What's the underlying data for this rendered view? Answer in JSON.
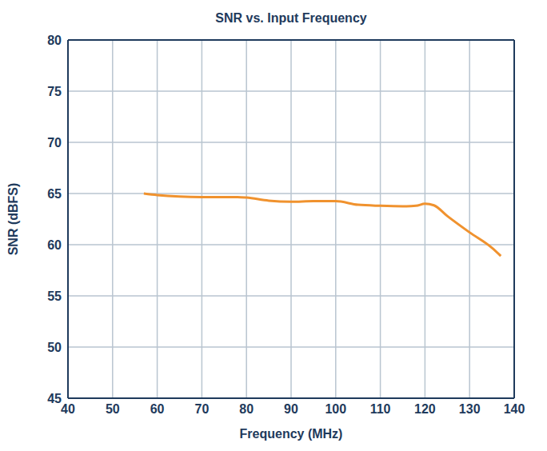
{
  "chart_data": {
    "type": "line",
    "title": "SNR vs. Input Frequency",
    "x_label": "Frequency (MHz)",
    "y_label": "SNR (dBFS)",
    "x": [
      57,
      60,
      65,
      70,
      75,
      78,
      80,
      85,
      90,
      95,
      100,
      105,
      110,
      115,
      118,
      120,
      122,
      125,
      130,
      135,
      137
    ],
    "values": [
      65.0,
      64.85,
      64.7,
      64.65,
      64.65,
      64.65,
      64.6,
      64.3,
      64.2,
      64.25,
      64.25,
      63.9,
      63.8,
      63.75,
      63.8,
      64.0,
      63.85,
      62.8,
      61.2,
      59.7,
      58.9
    ],
    "color": "#f0922e",
    "xlim": [
      40,
      140
    ],
    "xticks": [
      40,
      50,
      60,
      70,
      80,
      90,
      100,
      110,
      120,
      130,
      140
    ],
    "ylim": [
      45,
      80
    ],
    "yticks": [
      45,
      50,
      55,
      60,
      65,
      70,
      75,
      80
    ],
    "grid": true
  }
}
